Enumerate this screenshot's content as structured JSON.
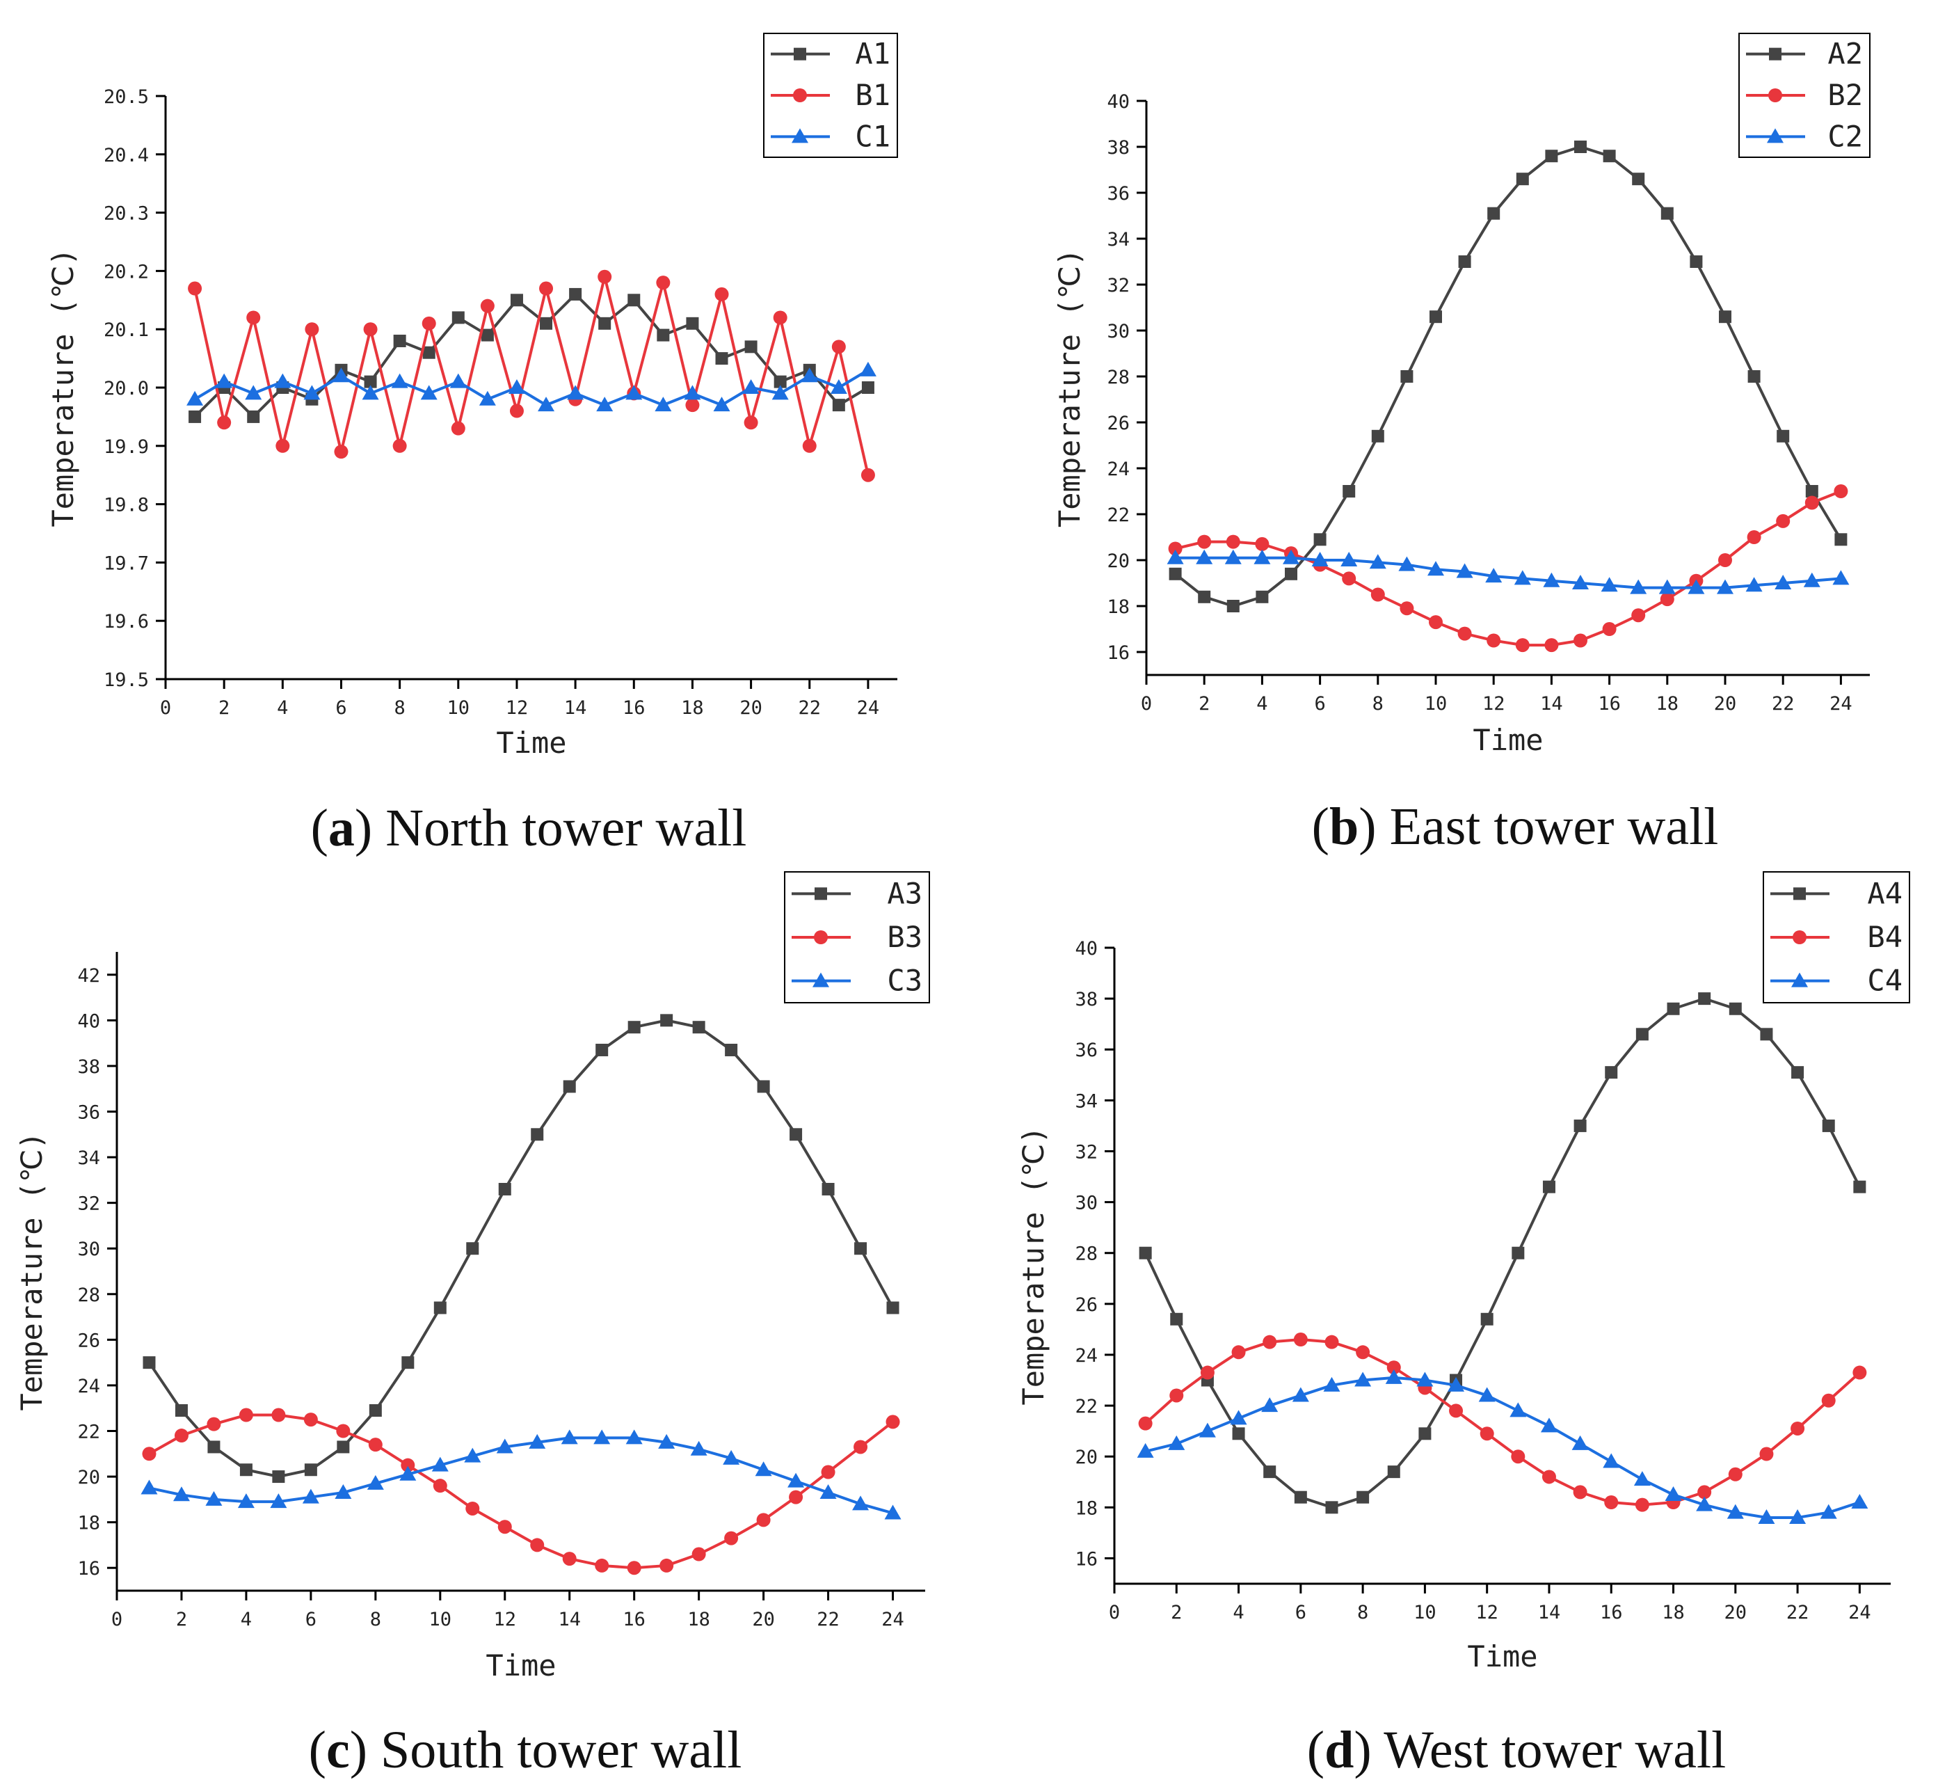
{
  "colors": {
    "A": "#444444",
    "B": "#e8363c",
    "C": "#1c6fe0"
  },
  "chart_data": [
    {
      "type": "line",
      "caption_letter": "a",
      "caption_text": "North tower wall",
      "xlabel": "Time",
      "ylabel": "Temperature (℃)",
      "xlim": [
        0,
        25
      ],
      "ylim": [
        19.5,
        20.5
      ],
      "xticks": [
        "0",
        "2",
        "4",
        "6",
        "8",
        "10",
        "12",
        "14",
        "16",
        "18",
        "20",
        "22",
        "24"
      ],
      "yticks": [
        "19.5",
        "19.6",
        "19.7",
        "19.8",
        "19.9",
        "20.0",
        "20.1",
        "20.2",
        "20.3",
        "20.4",
        "20.5"
      ],
      "legend_position": "top-right",
      "x": [
        1,
        2,
        3,
        4,
        5,
        6,
        7,
        8,
        9,
        10,
        11,
        12,
        13,
        14,
        15,
        16,
        17,
        18,
        19,
        20,
        21,
        22,
        23,
        24
      ],
      "series": [
        {
          "name": "A1",
          "key": "A",
          "marker": "square",
          "values": [
            19.95,
            20.0,
            19.95,
            20.0,
            19.98,
            20.03,
            20.01,
            20.08,
            20.06,
            20.12,
            20.09,
            20.15,
            20.11,
            20.16,
            20.11,
            20.15,
            20.09,
            20.11,
            20.05,
            20.07,
            20.01,
            20.03,
            19.97,
            20.0
          ]
        },
        {
          "name": "B1",
          "key": "B",
          "marker": "circle",
          "values": [
            20.17,
            19.94,
            20.12,
            19.9,
            20.1,
            19.89,
            20.1,
            19.9,
            20.11,
            19.93,
            20.14,
            19.96,
            20.17,
            19.98,
            20.19,
            19.99,
            20.18,
            19.97,
            20.16,
            19.94,
            20.12,
            19.9,
            20.07,
            19.85
          ]
        },
        {
          "name": "C1",
          "key": "C",
          "marker": "triangle",
          "values": [
            19.98,
            20.01,
            19.99,
            20.01,
            19.99,
            20.02,
            19.99,
            20.01,
            19.99,
            20.01,
            19.98,
            20.0,
            19.97,
            19.99,
            19.97,
            19.99,
            19.97,
            19.99,
            19.97,
            20.0,
            19.99,
            20.02,
            20.0,
            20.03
          ]
        }
      ]
    },
    {
      "type": "line",
      "caption_letter": "b",
      "caption_text": "East tower wall",
      "xlabel": "Time",
      "ylabel": "Temperature (℃)",
      "xlim": [
        0,
        25
      ],
      "ylim": [
        15,
        40
      ],
      "xticks": [
        "0",
        "2",
        "4",
        "6",
        "8",
        "10",
        "12",
        "14",
        "16",
        "18",
        "20",
        "22",
        "24"
      ],
      "yticks": [
        "16",
        "18",
        "20",
        "22",
        "24",
        "26",
        "28",
        "30",
        "32",
        "34",
        "36",
        "38",
        "40"
      ],
      "legend_position": "top-right",
      "x": [
        1,
        2,
        3,
        4,
        5,
        6,
        7,
        8,
        9,
        10,
        11,
        12,
        13,
        14,
        15,
        16,
        17,
        18,
        19,
        20,
        21,
        22,
        23,
        24
      ],
      "series": [
        {
          "name": "A2",
          "key": "A",
          "marker": "square",
          "values": [
            19.4,
            18.4,
            18.0,
            18.4,
            19.4,
            20.9,
            23.0,
            25.4,
            28.0,
            30.6,
            33.0,
            35.1,
            36.6,
            37.6,
            38.0,
            37.6,
            36.6,
            35.1,
            33.0,
            30.6,
            28.0,
            25.4,
            23.0,
            20.9
          ]
        },
        {
          "name": "B2",
          "key": "B",
          "marker": "circle",
          "values": [
            20.5,
            20.8,
            20.8,
            20.7,
            20.3,
            19.8,
            19.2,
            18.5,
            17.9,
            17.3,
            16.8,
            16.5,
            16.3,
            16.3,
            16.5,
            17.0,
            17.6,
            18.3,
            19.1,
            20.0,
            21.0,
            21.7,
            22.5,
            23.0
          ]
        },
        {
          "name": "C2",
          "key": "C",
          "marker": "triangle",
          "values": [
            20.1,
            20.1,
            20.1,
            20.1,
            20.1,
            20.0,
            20.0,
            19.9,
            19.8,
            19.6,
            19.5,
            19.3,
            19.2,
            19.1,
            19.0,
            18.9,
            18.8,
            18.8,
            18.8,
            18.8,
            18.9,
            19.0,
            19.1,
            19.2
          ]
        }
      ]
    },
    {
      "type": "line",
      "caption_letter": "c",
      "caption_text": "South tower wall",
      "xlabel": "Time",
      "ylabel": "Temperature (℃)",
      "xlim": [
        0,
        25
      ],
      "ylim": [
        15,
        43
      ],
      "xticks": [
        "0",
        "2",
        "4",
        "6",
        "8",
        "10",
        "12",
        "14",
        "16",
        "18",
        "20",
        "22",
        "24"
      ],
      "yticks": [
        "16",
        "18",
        "20",
        "22",
        "24",
        "26",
        "28",
        "30",
        "32",
        "34",
        "36",
        "38",
        "40",
        "42"
      ],
      "legend_position": "top-right",
      "x": [
        1,
        2,
        3,
        4,
        5,
        6,
        7,
        8,
        9,
        10,
        11,
        12,
        13,
        14,
        15,
        16,
        17,
        18,
        19,
        20,
        21,
        22,
        23,
        24
      ],
      "series": [
        {
          "name": "A3",
          "key": "A",
          "marker": "square",
          "values": [
            25.0,
            22.9,
            21.3,
            20.3,
            20.0,
            20.3,
            21.3,
            22.9,
            25.0,
            27.4,
            30.0,
            32.6,
            35.0,
            37.1,
            38.7,
            39.7,
            40.0,
            39.7,
            38.7,
            37.1,
            35.0,
            32.6,
            30.0,
            27.4
          ]
        },
        {
          "name": "B3",
          "key": "B",
          "marker": "circle",
          "values": [
            21.0,
            21.8,
            22.3,
            22.7,
            22.7,
            22.5,
            22.0,
            21.4,
            20.5,
            19.6,
            18.6,
            17.8,
            17.0,
            16.4,
            16.1,
            16.0,
            16.1,
            16.6,
            17.3,
            18.1,
            19.1,
            20.2,
            21.3,
            22.4
          ]
        },
        {
          "name": "C3",
          "key": "C",
          "marker": "triangle",
          "values": [
            19.5,
            19.2,
            19.0,
            18.9,
            18.9,
            19.1,
            19.3,
            19.7,
            20.1,
            20.5,
            20.9,
            21.3,
            21.5,
            21.7,
            21.7,
            21.7,
            21.5,
            21.2,
            20.8,
            20.3,
            19.8,
            19.3,
            18.8,
            18.4
          ]
        }
      ]
    },
    {
      "type": "line",
      "caption_letter": "d",
      "caption_text": "West tower wall",
      "xlabel": "Time",
      "ylabel": "Temperature (℃)",
      "xlim": [
        0,
        25
      ],
      "ylim": [
        15,
        40
      ],
      "xticks": [
        "0",
        "2",
        "4",
        "6",
        "8",
        "10",
        "12",
        "14",
        "16",
        "18",
        "20",
        "22",
        "24"
      ],
      "yticks": [
        "16",
        "18",
        "20",
        "22",
        "24",
        "26",
        "28",
        "30",
        "32",
        "34",
        "36",
        "38",
        "40"
      ],
      "legend_position": "top-right",
      "x": [
        1,
        2,
        3,
        4,
        5,
        6,
        7,
        8,
        9,
        10,
        11,
        12,
        13,
        14,
        15,
        16,
        17,
        18,
        19,
        20,
        21,
        22,
        23,
        24
      ],
      "series": [
        {
          "name": "A4",
          "key": "A",
          "marker": "square",
          "values": [
            28.0,
            25.4,
            23.0,
            20.9,
            19.4,
            18.4,
            18.0,
            18.4,
            19.4,
            20.9,
            23.0,
            25.4,
            28.0,
            30.6,
            33.0,
            35.1,
            36.6,
            37.6,
            38.0,
            37.6,
            36.6,
            35.1,
            33.0,
            30.6
          ]
        },
        {
          "name": "B4",
          "key": "B",
          "marker": "circle",
          "values": [
            21.3,
            22.4,
            23.3,
            24.1,
            24.5,
            24.6,
            24.5,
            24.1,
            23.5,
            22.7,
            21.8,
            20.9,
            20.0,
            19.2,
            18.6,
            18.2,
            18.1,
            18.2,
            18.6,
            19.3,
            20.1,
            21.1,
            22.2,
            23.3
          ]
        },
        {
          "name": "C4",
          "key": "C",
          "marker": "triangle",
          "values": [
            20.2,
            20.5,
            21.0,
            21.5,
            22.0,
            22.4,
            22.8,
            23.0,
            23.1,
            23.0,
            22.8,
            22.4,
            21.8,
            21.2,
            20.5,
            19.8,
            19.1,
            18.5,
            18.1,
            17.8,
            17.6,
            17.6,
            17.8,
            18.2
          ]
        }
      ]
    }
  ]
}
